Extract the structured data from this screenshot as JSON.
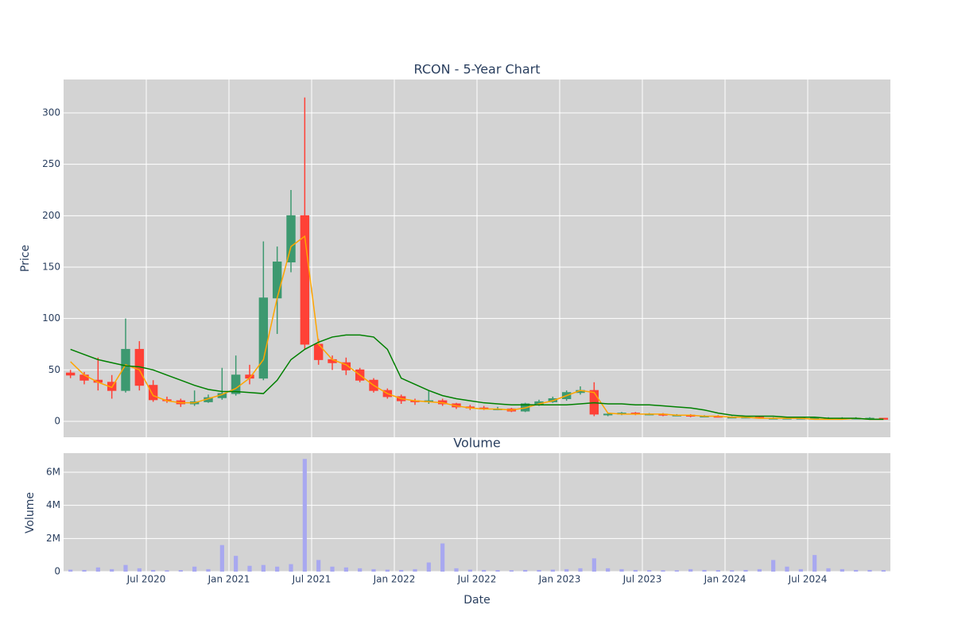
{
  "chart_data": [
    {
      "type": "candlestick",
      "title": "RCON - 5-Year Chart",
      "ylabel": "Price",
      "x": [
        "2020-01",
        "2020-02",
        "2020-03",
        "2020-04",
        "2020-05",
        "2020-06",
        "2020-07",
        "2020-08",
        "2020-09",
        "2020-10",
        "2020-11",
        "2020-12",
        "2021-01",
        "2021-02",
        "2021-03",
        "2021-04",
        "2021-05",
        "2021-06",
        "2021-07",
        "2021-08",
        "2021-09",
        "2021-10",
        "2021-11",
        "2021-12",
        "2022-01",
        "2022-02",
        "2022-03",
        "2022-04",
        "2022-05",
        "2022-06",
        "2022-07",
        "2022-08",
        "2022-09",
        "2022-10",
        "2022-11",
        "2022-12",
        "2023-01",
        "2023-02",
        "2023-03",
        "2023-04",
        "2023-05",
        "2023-06",
        "2023-07",
        "2023-08",
        "2023-09",
        "2023-10",
        "2023-11",
        "2023-12",
        "2024-01",
        "2024-02",
        "2024-03",
        "2024-04",
        "2024-05",
        "2024-06",
        "2024-07",
        "2024-08",
        "2024-09",
        "2024-10",
        "2024-11",
        "2024-12"
      ],
      "open": [
        47,
        45,
        40,
        38,
        30,
        70,
        35,
        21,
        20,
        17,
        19,
        23,
        27,
        45,
        42,
        120,
        155,
        200,
        75,
        60,
        57,
        50,
        40,
        30,
        24,
        20,
        19,
        20,
        17,
        14,
        13,
        12,
        12,
        10,
        17,
        19,
        22,
        28,
        30,
        7,
        7,
        8,
        7,
        7,
        6,
        6,
        5,
        5,
        4,
        4,
        4,
        3,
        3,
        3,
        3,
        3,
        3,
        3,
        3,
        3
      ],
      "high": [
        50,
        48,
        62,
        45,
        100,
        78,
        40,
        24,
        22,
        30,
        26,
        52,
        64,
        55,
        175,
        170,
        225,
        315,
        80,
        64,
        62,
        52,
        42,
        32,
        26,
        22,
        30,
        22,
        18,
        16,
        15,
        14,
        13,
        18,
        21,
        24,
        30,
        34,
        38,
        8,
        9,
        9,
        8,
        8,
        7,
        7,
        6,
        6,
        5,
        5,
        5,
        4,
        4,
        4,
        4,
        4,
        4,
        4,
        4,
        3
      ],
      "low": [
        42,
        36,
        30,
        22,
        28,
        30,
        19,
        18,
        14,
        15,
        18,
        21,
        25,
        36,
        40,
        85,
        145,
        70,
        55,
        50,
        45,
        38,
        28,
        22,
        17,
        16,
        17,
        15,
        12,
        11,
        11,
        11,
        9,
        9,
        15,
        18,
        20,
        26,
        5,
        5,
        6,
        6,
        6,
        5,
        5,
        4,
        4,
        4,
        3,
        3,
        3,
        3,
        2,
        2,
        2,
        2,
        2,
        2,
        2,
        2
      ],
      "close": [
        45,
        40,
        38,
        30,
        70,
        35,
        21,
        20,
        17,
        19,
        23,
        27,
        45,
        42,
        120,
        155,
        200,
        75,
        60,
        57,
        50,
        40,
        30,
        24,
        20,
        19,
        20,
        17,
        14,
        13,
        12,
        12,
        10,
        17,
        19,
        22,
        28,
        30,
        7,
        7,
        8,
        7,
        7,
        6,
        6,
        5,
        5,
        4,
        4,
        4,
        3,
        3,
        3,
        3,
        3,
        3,
        3,
        3,
        3,
        2
      ],
      "increasing_color": "#3d9970",
      "decreasing_color": "#ff4136",
      "lines": [
        {
          "color": "orange",
          "values": [
            58,
            45,
            38,
            33,
            55,
            50,
            25,
            20,
            18,
            18,
            22,
            26,
            32,
            42,
            60,
            120,
            170,
            180,
            75,
            60,
            55,
            45,
            35,
            27,
            22,
            20,
            19,
            18,
            15,
            13,
            12,
            12,
            11,
            13,
            17,
            20,
            25,
            30,
            28,
            8,
            7,
            7,
            7,
            7,
            6,
            6,
            5,
            5,
            4,
            4,
            3,
            3,
            3,
            3,
            2,
            2,
            2,
            3,
            2,
            2
          ]
        },
        {
          "color": "green",
          "values": [
            70,
            65,
            60,
            57,
            54,
            53,
            50,
            45,
            40,
            35,
            31,
            29,
            29,
            28,
            27,
            40,
            60,
            70,
            77,
            82,
            84,
            84,
            82,
            70,
            42,
            36,
            30,
            25,
            22,
            20,
            18,
            17,
            16,
            16,
            16,
            16,
            16,
            17,
            18,
            17,
            17,
            16,
            16,
            15,
            14,
            13,
            11,
            8,
            6,
            5,
            5,
            5,
            4,
            4,
            4,
            3,
            3,
            3,
            2,
            2
          ]
        }
      ],
      "xlim": [
        "2020-01",
        "2024-12"
      ],
      "xticks": [
        "2020-07",
        "2021-01",
        "2021-07",
        "2022-01",
        "2022-07",
        "2023-01",
        "2023-07",
        "2024-01",
        "2024-07"
      ],
      "ylim": [
        -15.5,
        332.5
      ],
      "yticks": [
        0,
        50,
        100,
        150,
        200,
        250,
        300
      ],
      "grid": true,
      "background": "#d3d3d3"
    },
    {
      "type": "bar",
      "title": "Volume",
      "ylabel": "Volume",
      "xlabel": "Date",
      "x": [
        "2020-01",
        "2020-02",
        "2020-03",
        "2020-04",
        "2020-05",
        "2020-06",
        "2020-07",
        "2020-08",
        "2020-09",
        "2020-10",
        "2020-11",
        "2020-12",
        "2021-01",
        "2021-02",
        "2021-03",
        "2021-04",
        "2021-05",
        "2021-06",
        "2021-07",
        "2021-08",
        "2021-09",
        "2021-10",
        "2021-11",
        "2021-12",
        "2022-01",
        "2022-02",
        "2022-03",
        "2022-04",
        "2022-05",
        "2022-06",
        "2022-07",
        "2022-08",
        "2022-09",
        "2022-10",
        "2022-11",
        "2022-12",
        "2023-01",
        "2023-02",
        "2023-03",
        "2023-04",
        "2023-05",
        "2023-06",
        "2023-07",
        "2023-08",
        "2023-09",
        "2023-10",
        "2023-11",
        "2023-12",
        "2024-01",
        "2024-02",
        "2024-03",
        "2024-04",
        "2024-05",
        "2024-06",
        "2024-07",
        "2024-08",
        "2024-09",
        "2024-10",
        "2024-11",
        "2024-12"
      ],
      "values": [
        120000,
        100000,
        250000,
        150000,
        400000,
        200000,
        100000,
        80000,
        90000,
        300000,
        150000,
        1600000,
        950000,
        350000,
        400000,
        300000,
        450000,
        6800000,
        700000,
        300000,
        250000,
        200000,
        150000,
        120000,
        100000,
        150000,
        550000,
        1700000,
        200000,
        120000,
        100000,
        90000,
        80000,
        100000,
        100000,
        120000,
        150000,
        200000,
        800000,
        200000,
        150000,
        100000,
        90000,
        80000,
        80000,
        150000,
        100000,
        90000,
        80000,
        100000,
        150000,
        700000,
        300000,
        150000,
        1000000,
        200000,
        150000,
        100000,
        100000,
        90000
      ],
      "color": "#a8a8f0",
      "xlim": [
        "2020-01",
        "2024-12"
      ],
      "xticks": [
        {
          "value": "2020-07",
          "label": "Jul 2020"
        },
        {
          "value": "2021-01",
          "label": "Jan 2021"
        },
        {
          "value": "2021-07",
          "label": "Jul 2021"
        },
        {
          "value": "2022-01",
          "label": "Jan 2022"
        },
        {
          "value": "2022-07",
          "label": "Jul 2022"
        },
        {
          "value": "2023-01",
          "label": "Jan 2023"
        },
        {
          "value": "2023-07",
          "label": "Jul 2023"
        },
        {
          "value": "2024-01",
          "label": "Jan 2024"
        },
        {
          "value": "2024-07",
          "label": "Jul 2024"
        }
      ],
      "ylim": [
        0,
        7150000
      ],
      "yticks": [
        0,
        {
          "value": 2000000,
          "label": "2M"
        },
        {
          "value": 4000000,
          "label": "4M"
        },
        {
          "value": 6000000,
          "label": "6M"
        }
      ],
      "grid": true,
      "background": "#d3d3d3"
    }
  ]
}
